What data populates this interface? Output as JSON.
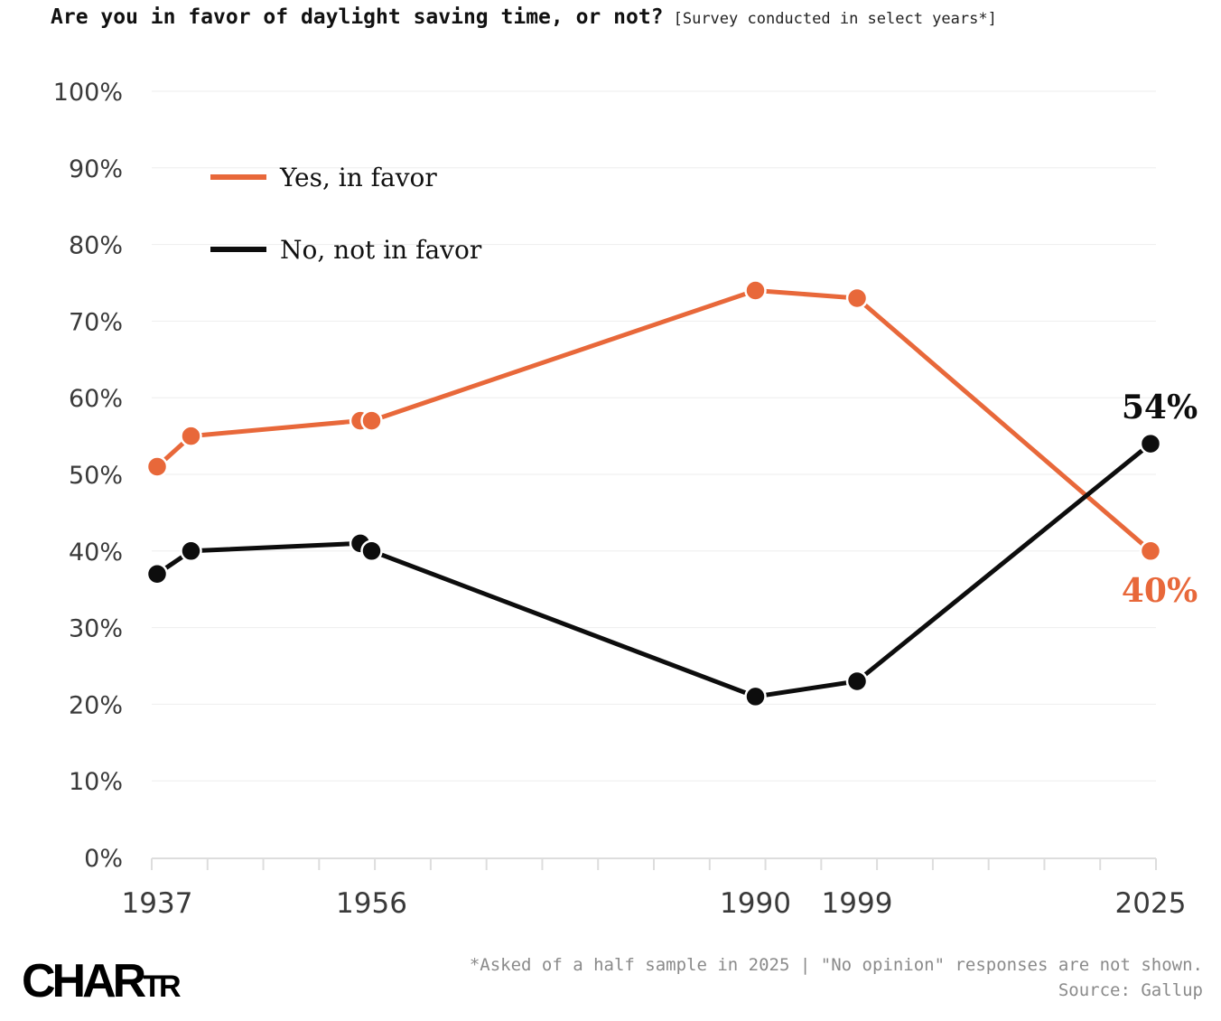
{
  "title": "Are you in favor of daylight saving time, or not?",
  "subtitle": "[Survey conducted in select years*]",
  "colors": {
    "yes": "#e8683a",
    "no": "#0d0d0d",
    "grid": "#eeeeee",
    "axis": "#dddddd"
  },
  "chart_data": {
    "type": "line",
    "title": "Are you in favor of daylight saving time, or not?",
    "xlabel": "",
    "ylabel": "",
    "ylim": [
      0,
      100
    ],
    "xlim": [
      1937,
      2025
    ],
    "y_ticks": [
      "0%",
      "10%",
      "20%",
      "30%",
      "40%",
      "50%",
      "60%",
      "70%",
      "80%",
      "90%",
      "100%"
    ],
    "x_tick_labels": [
      "1937",
      "1956",
      "1990",
      "1999",
      "2025"
    ],
    "x_tick_years": [
      1937,
      1956,
      1990,
      1999,
      2025
    ],
    "legend": [
      "Yes, in favor",
      "No, not in favor"
    ],
    "legend_position": "top-left",
    "series": [
      {
        "name": "Yes, in favor",
        "color": "#e8683a",
        "x": [
          1937,
          1940,
          1955,
          1956,
          1990,
          1999,
          2025
        ],
        "values": [
          51,
          55,
          57,
          57,
          74,
          73,
          40
        ],
        "end_label": "40%"
      },
      {
        "name": "No, not in favor",
        "color": "#0d0d0d",
        "x": [
          1937,
          1940,
          1955,
          1956,
          1990,
          1999,
          2025
        ],
        "values": [
          37,
          40,
          41,
          40,
          21,
          23,
          54
        ],
        "end_label": "54%"
      }
    ]
  },
  "footnote": {
    "line1": "*Asked of a half sample in 2025 | \"No opinion\" responses are not shown.",
    "line2": "Source: Gallup"
  },
  "logo": {
    "big": "CHAR",
    "small": "TR"
  }
}
